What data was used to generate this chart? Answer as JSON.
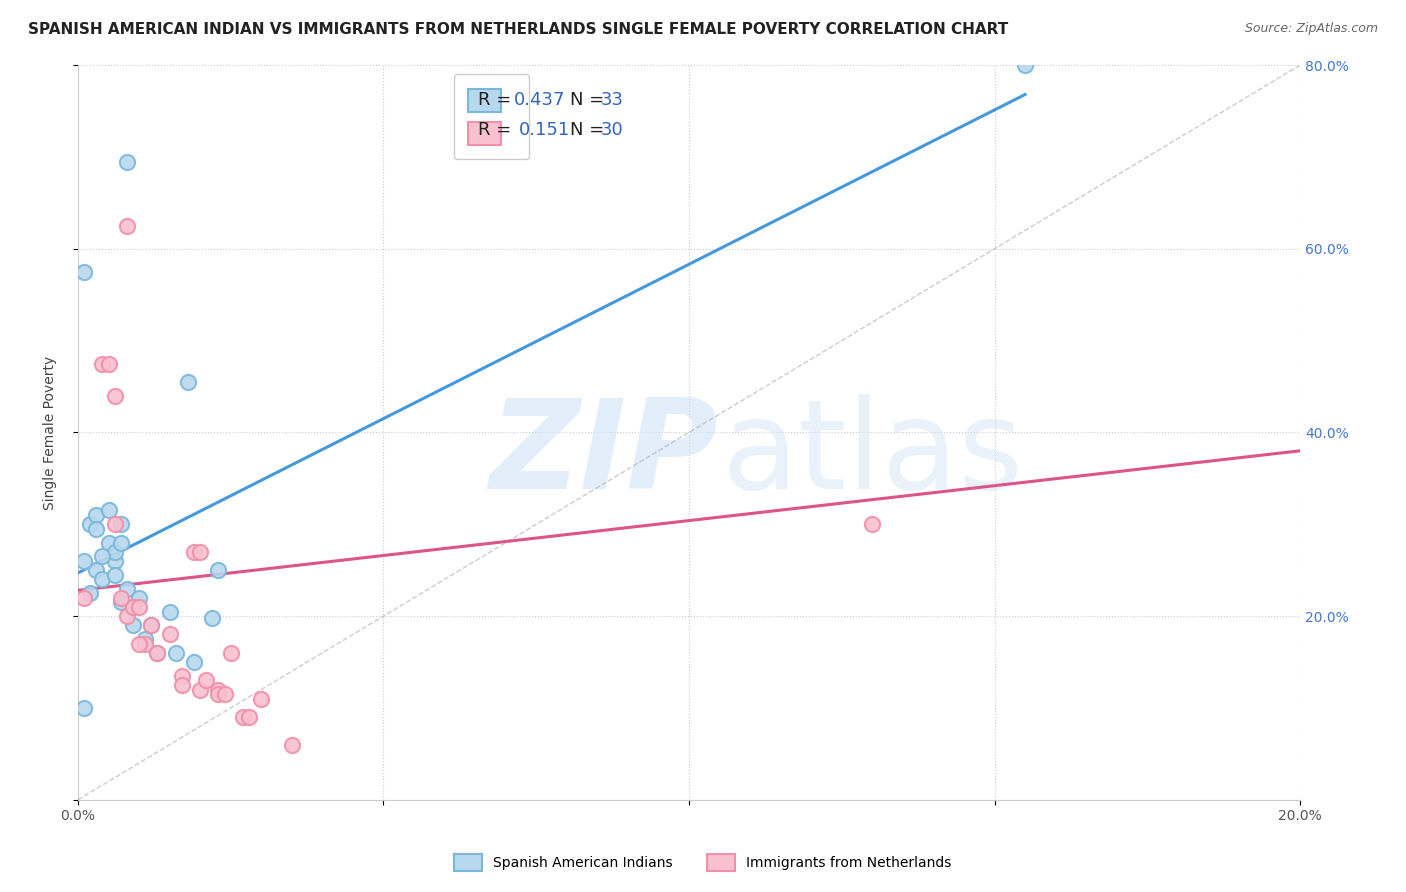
{
  "title": "SPANISH AMERICAN INDIAN VS IMMIGRANTS FROM NETHERLANDS SINGLE FEMALE POVERTY CORRELATION CHART",
  "source": "Source: ZipAtlas.com",
  "ylabel": "Single Female Poverty",
  "blue_color": "#7ab8d9",
  "blue_fill": "#b8d8ee",
  "pink_color": "#f090aa",
  "pink_fill": "#f8c0d0",
  "line_blue": "#4499dd",
  "line_pink": "#dd5588",
  "blue_scatter_x": [
    0.001,
    0.008,
    0.018,
    0.002,
    0.003,
    0.003,
    0.004,
    0.005,
    0.005,
    0.006,
    0.006,
    0.007,
    0.007,
    0.008,
    0.009,
    0.01,
    0.011,
    0.012,
    0.013,
    0.015,
    0.016,
    0.019,
    0.022,
    0.023,
    0.001,
    0.002,
    0.003,
    0.004,
    0.006,
    0.007,
    0.009,
    0.155,
    0.001
  ],
  "blue_scatter_y": [
    0.575,
    0.695,
    0.455,
    0.3,
    0.31,
    0.25,
    0.24,
    0.315,
    0.28,
    0.26,
    0.27,
    0.3,
    0.28,
    0.23,
    0.19,
    0.22,
    0.175,
    0.19,
    0.16,
    0.205,
    0.16,
    0.15,
    0.198,
    0.25,
    0.1,
    0.225,
    0.295,
    0.265,
    0.245,
    0.215,
    0.21,
    0.8,
    0.26
  ],
  "pink_scatter_x": [
    0.001,
    0.004,
    0.005,
    0.006,
    0.008,
    0.009,
    0.01,
    0.011,
    0.012,
    0.013,
    0.015,
    0.017,
    0.019,
    0.02,
    0.02,
    0.023,
    0.025,
    0.027,
    0.03,
    0.035,
    0.006,
    0.007,
    0.008,
    0.01,
    0.017,
    0.021,
    0.023,
    0.024,
    0.028,
    0.13
  ],
  "pink_scatter_y": [
    0.22,
    0.475,
    0.475,
    0.44,
    0.2,
    0.21,
    0.21,
    0.17,
    0.19,
    0.16,
    0.18,
    0.135,
    0.27,
    0.27,
    0.12,
    0.12,
    0.16,
    0.09,
    0.11,
    0.06,
    0.3,
    0.22,
    0.625,
    0.17,
    0.125,
    0.13,
    0.115,
    0.115,
    0.09,
    0.3
  ],
  "blue_line_x": [
    0.0,
    0.155
  ],
  "blue_line_y": [
    0.247,
    0.768
  ],
  "pink_line_x": [
    0.0,
    0.2
  ],
  "pink_line_y": [
    0.228,
    0.38
  ],
  "dashed_line_x": [
    0.0,
    0.2
  ],
  "dashed_line_y": [
    0.0,
    0.8
  ],
  "xlim": [
    0.0,
    0.2
  ],
  "ylim": [
    0.0,
    0.8
  ],
  "x_ticks": [
    0.0,
    0.05,
    0.1,
    0.15,
    0.2
  ],
  "x_tick_labels": [
    "0.0%",
    "",
    "",
    "",
    "20.0%"
  ],
  "y_ticks_right": [
    0.0,
    0.2,
    0.4,
    0.6,
    0.8
  ],
  "y_tick_labels_right": [
    "",
    "20.0%",
    "40.0%",
    "60.0%",
    "80.0%"
  ],
  "background_color": "#ffffff",
  "grid_color": "#cccccc",
  "title_fontsize": 11,
  "source_fontsize": 9,
  "label_fontsize": 10,
  "tick_fontsize": 10,
  "legend_fontsize": 13,
  "watermark_color": "#d0e4f5",
  "legend_r1": "R = 0.437",
  "legend_n1": "N = 33",
  "legend_r2": "R =  0.151",
  "legend_n2": "N = 30"
}
